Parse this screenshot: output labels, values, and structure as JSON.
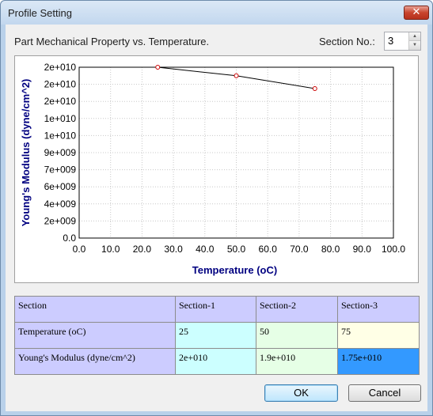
{
  "window": {
    "title": "Profile Setting",
    "close_label": "✕"
  },
  "header": {
    "heading": "Part Mechanical Property vs. Temperature.",
    "section_label": "Section No.:",
    "section_value": "3"
  },
  "chart_data": {
    "type": "line",
    "xlabel": "Temperature (oC)",
    "ylabel": "Young's Modulus (dyne/cm^2)",
    "xlim": [
      0,
      100
    ],
    "ylim": [
      0,
      20000000000
    ],
    "x_ticks": [
      "0.0",
      "10.0",
      "20.0",
      "30.0",
      "40.0",
      "50.0",
      "60.0",
      "70.0",
      "80.0",
      "90.0",
      "100.0"
    ],
    "y_ticks": [
      "0.0",
      "2e+009",
      "4e+009",
      "6e+009",
      "7e+009",
      "9e+009",
      "1e+010",
      "1e+010",
      "2e+010",
      "2e+010",
      "2e+010"
    ],
    "grid": true,
    "series": [
      {
        "x": [
          25,
          50,
          75
        ],
        "y": [
          20000000000,
          19000000000,
          17500000000
        ]
      }
    ],
    "colors": {
      "line": "#000000",
      "marker": "#cc0000",
      "label": "#000080"
    }
  },
  "table": {
    "header": [
      "Section",
      "Section-1",
      "Section-2",
      "Section-3"
    ],
    "rows": [
      {
        "label": "Temperature (oC)",
        "values": [
          "25",
          "50",
          "75"
        ]
      },
      {
        "label": "Young's Modulus (dyne/cm^2)",
        "values": [
          "2e+010",
          "1.9e+010",
          "1.75e+010"
        ]
      }
    ]
  },
  "buttons": {
    "ok": "OK",
    "cancel": "Cancel"
  }
}
